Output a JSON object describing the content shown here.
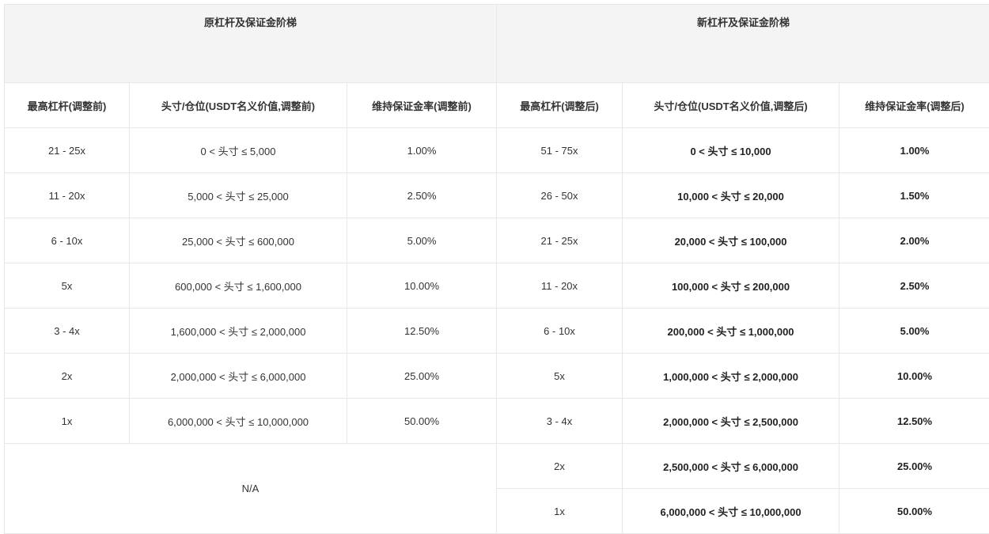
{
  "groups": {
    "old": "原杠杆及保证金阶梯",
    "new": "新杠杆及保证金阶梯"
  },
  "headers": [
    "最高杠杆(调整前)",
    "头寸/仓位(USDT名义价值,调整前)",
    "维持保证金率(调整前)",
    "最高杠杆(调整后)",
    "头寸/仓位(USDT名义价值,调整后)",
    "维持保证金率(调整后)"
  ],
  "old_rows": [
    [
      "21 - 25x",
      "0 < 头寸 ≤ 5,000",
      "1.00%"
    ],
    [
      "11 - 20x",
      "5,000 < 头寸 ≤ 25,000",
      "2.50%"
    ],
    [
      "6 - 10x",
      "25,000 < 头寸 ≤ 600,000",
      "5.00%"
    ],
    [
      "5x",
      "600,000 < 头寸 ≤ 1,600,000",
      "10.00%"
    ],
    [
      "3 - 4x",
      "1,600,000 < 头寸 ≤ 2,000,000",
      "12.50%"
    ],
    [
      "2x",
      "2,000,000 < 头寸 ≤ 6,000,000",
      "25.00%"
    ],
    [
      "1x",
      "6,000,000 < 头寸 ≤ 10,000,000",
      "50.00%"
    ]
  ],
  "old_na": "N/A",
  "new_rows": [
    [
      "51 - 75x",
      "0 < 头寸 ≤ 10,000",
      "1.00%"
    ],
    [
      "26 - 50x",
      "10,000 < 头寸 ≤ 20,000",
      "1.50%"
    ],
    [
      "21 - 25x",
      "20,000 < 头寸 ≤ 100,000",
      "2.00%"
    ],
    [
      "11 - 20x",
      "100,000 < 头寸 ≤ 200,000",
      "2.50%"
    ],
    [
      "6 - 10x",
      "200,000 < 头寸 ≤ 1,000,000",
      "5.00%"
    ],
    [
      "5x",
      "1,000,000 < 头寸 ≤ 2,000,000",
      "10.00%"
    ],
    [
      "3 - 4x",
      "2,000,000 < 头寸 ≤ 2,500,000",
      "12.50%"
    ],
    [
      "2x",
      "2,500,000 < 头寸 ≤ 6,000,000",
      "25.00%"
    ],
    [
      "1x",
      "6,000,000 < 头寸 ≤ 10,000,000",
      "50.00%"
    ]
  ]
}
